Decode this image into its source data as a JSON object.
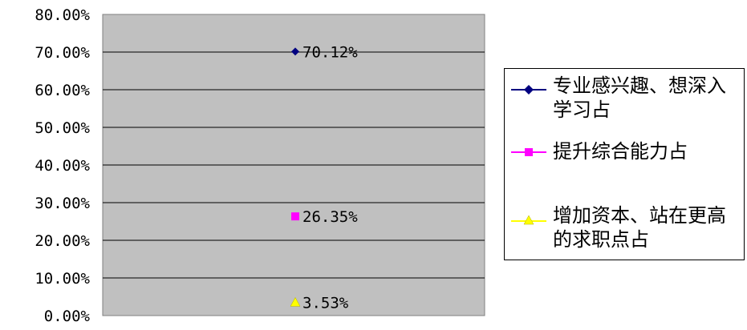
{
  "chart_data": {
    "type": "scatter",
    "ylim": [
      0,
      80
    ],
    "y_ticks": [
      "0.00%",
      "10.00%",
      "20.00%",
      "30.00%",
      "40.00%",
      "50.00%",
      "60.00%",
      "70.00%",
      "80.00%"
    ],
    "grid": true,
    "legend_position": "right",
    "series": [
      {
        "name": "专业感兴趣、想深入学习占",
        "value": 70.12,
        "label": "70.12%",
        "marker": "diamond",
        "color": "#000080"
      },
      {
        "name": "提升综合能力占",
        "value": 26.35,
        "label": "26.35%",
        "marker": "square",
        "color": "#ff00ff"
      },
      {
        "name": "增加资本、站在更高的求职点占",
        "value": 3.53,
        "label": "3.53%",
        "marker": "triangle",
        "color": "#ffff00"
      }
    ],
    "plot_background": "#c0c0c0"
  }
}
